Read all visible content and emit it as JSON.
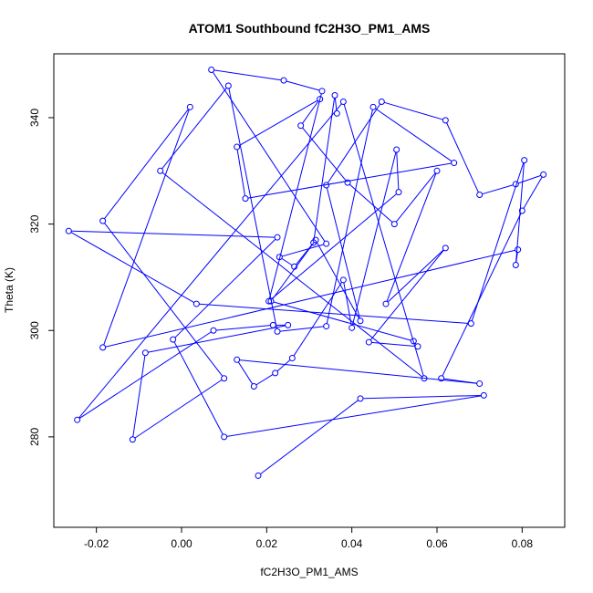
{
  "chart_data": {
    "type": "line",
    "title": "ATOM1 Southbound fC2H3O_PM1_AMS",
    "xlabel": "fC2H3O_PM1_AMS",
    "ylabel": "Theta (K)",
    "xlim": [
      -0.03,
      0.09
    ],
    "ylim": [
      263,
      352
    ],
    "xticks": [
      -0.02,
      0.0,
      0.02,
      0.04,
      0.06,
      0.08
    ],
    "xtick_labels": [
      "-0.02",
      "0.00",
      "0.02",
      "0.04",
      "0.06",
      "0.08"
    ],
    "yticks": [
      280,
      300,
      320,
      340
    ],
    "ytick_labels": [
      "280",
      "300",
      "320",
      "340"
    ],
    "grid": false,
    "series": [
      {
        "marker": "open-circle",
        "color": "#0000ff",
        "points": [
          [
            0.018,
            272.7
          ],
          [
            0.042,
            287.2
          ],
          [
            0.071,
            287.8
          ],
          [
            0.01,
            280.0
          ],
          [
            -0.002,
            298.3
          ],
          [
            0.0225,
            317.5
          ],
          [
            -0.0265,
            318.7
          ],
          [
            0.0035,
            305.0
          ],
          [
            0.068,
            301.3
          ],
          [
            0.0805,
            332.0
          ],
          [
            0.0785,
            312.3
          ],
          [
            0.079,
            315.2
          ],
          [
            -0.0185,
            296.8
          ],
          [
            0.002,
            342.0
          ],
          [
            -0.0185,
            320.6
          ],
          [
            0.01,
            291.0
          ],
          [
            -0.0115,
            279.5
          ],
          [
            -0.0085,
            295.8
          ],
          [
            0.025,
            301.0
          ],
          [
            0.0215,
            301.0
          ],
          [
            0.0075,
            300.0
          ],
          [
            -0.0245,
            283.2
          ],
          [
            0.038,
            343.0
          ],
          [
            0.057,
            291.0
          ],
          [
            -0.005,
            330.0
          ],
          [
            0.011,
            346.0
          ],
          [
            0.0225,
            299.8
          ],
          [
            0.034,
            300.8
          ],
          [
            0.045,
            342.0
          ],
          [
            0.064,
            331.5
          ],
          [
            0.015,
            324.8
          ],
          [
            0.013,
            334.5
          ],
          [
            0.0325,
            343.5
          ],
          [
            0.028,
            338.5
          ],
          [
            0.039,
            327.8
          ],
          [
            0.05,
            320.0
          ],
          [
            0.06,
            330.0
          ],
          [
            0.048,
            305.0
          ],
          [
            0.062,
            315.5
          ],
          [
            0.044,
            297.8
          ],
          [
            0.0555,
            297.0
          ],
          [
            0.0545,
            298.0
          ],
          [
            0.021,
            305.5
          ],
          [
            0.0315,
            317.0
          ],
          [
            0.042,
            301.8
          ],
          [
            0.034,
            327.3
          ],
          [
            0.047,
            343.0
          ],
          [
            0.062,
            339.5
          ],
          [
            0.07,
            325.5
          ],
          [
            0.0785,
            327.5
          ],
          [
            0.085,
            329.3
          ],
          [
            0.08,
            322.5
          ],
          [
            0.061,
            291.0
          ],
          [
            0.07,
            290.0
          ],
          [
            0.013,
            294.5
          ],
          [
            0.017,
            289.5
          ],
          [
            0.022,
            292.0
          ],
          [
            0.026,
            294.8
          ],
          [
            0.038,
            309.5
          ],
          [
            0.04,
            300.5
          ],
          [
            0.0505,
            334.0
          ],
          [
            0.051,
            326.0
          ],
          [
            0.0205,
            305.5
          ],
          [
            0.033,
            345.0
          ],
          [
            0.024,
            347.0
          ],
          [
            0.007,
            349.0
          ],
          [
            0.034,
            316.3
          ],
          [
            0.023,
            313.8
          ],
          [
            0.0265,
            312.0
          ],
          [
            0.031,
            316.5
          ],
          [
            0.036,
            344.2
          ],
          [
            0.0365,
            340.8
          ]
        ]
      }
    ]
  }
}
